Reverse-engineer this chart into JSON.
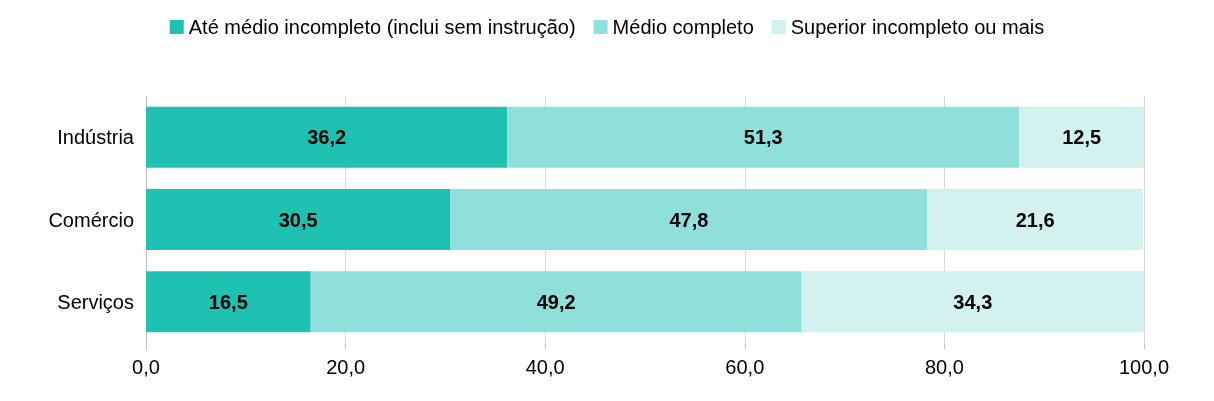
{
  "chart_data": {
    "type": "bar",
    "orientation": "horizontal",
    "stacked": true,
    "categories": [
      "Indústria",
      "Comércio",
      "Serviços"
    ],
    "series": [
      {
        "name": "Até médio incompleto (inclui sem instrução)",
        "color": "#1fc1b2",
        "values": [
          36.2,
          30.5,
          16.5
        ],
        "value_labels": [
          "36,2",
          "30,5",
          "16,5"
        ]
      },
      {
        "name": "Médio completo",
        "color": "#8fe0da",
        "values": [
          51.3,
          47.8,
          49.2
        ],
        "value_labels": [
          "51,3",
          "47,8",
          "49,2"
        ]
      },
      {
        "name": "Superior incompleto ou mais",
        "color": "#d3f2ef",
        "values": [
          12.5,
          21.6,
          34.3
        ],
        "value_labels": [
          "12,5",
          "21,6",
          "34,3"
        ]
      }
    ],
    "xlim": [
      0,
      100
    ],
    "xticks": [
      {
        "value": 0,
        "label": "0,0"
      },
      {
        "value": 20,
        "label": "20,0"
      },
      {
        "value": 40,
        "label": "40,0"
      },
      {
        "value": 60,
        "label": "60,0"
      },
      {
        "value": 80,
        "label": "80,0"
      },
      {
        "value": 100,
        "label": "100,0"
      }
    ],
    "grid": "x",
    "legend": "top"
  }
}
